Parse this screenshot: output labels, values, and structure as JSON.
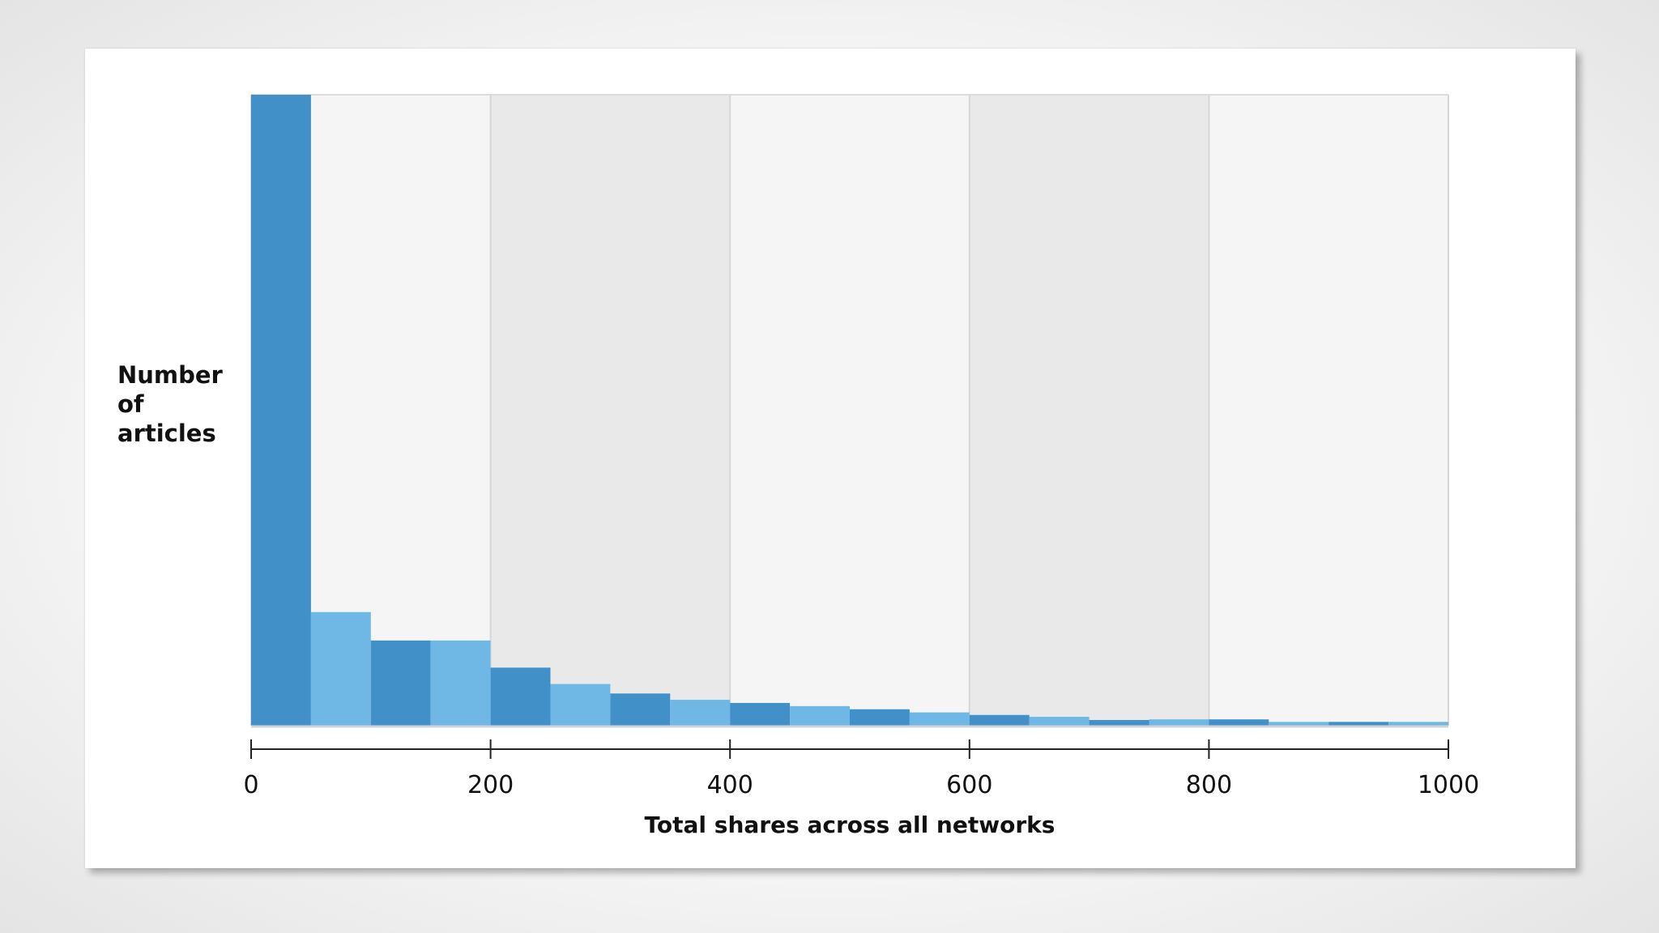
{
  "chart_data": {
    "type": "bar",
    "xlabel": "Total shares across all networks",
    "ylabel_lines": [
      "Number",
      "of",
      "articles"
    ],
    "xlim": [
      0,
      1000
    ],
    "x_ticks": [
      "0",
      "200",
      "400",
      "600",
      "800",
      "1000"
    ],
    "bin_width": 50,
    "bins": [
      {
        "start": 0,
        "end": 50,
        "value": 100
      },
      {
        "start": 50,
        "end": 100,
        "value": 18
      },
      {
        "start": 100,
        "end": 150,
        "value": 13.5
      },
      {
        "start": 150,
        "end": 200,
        "value": 13.5
      },
      {
        "start": 200,
        "end": 250,
        "value": 9.2
      },
      {
        "start": 250,
        "end": 300,
        "value": 6.6
      },
      {
        "start": 300,
        "end": 350,
        "value": 5.1
      },
      {
        "start": 350,
        "end": 400,
        "value": 4.1
      },
      {
        "start": 400,
        "end": 450,
        "value": 3.6
      },
      {
        "start": 450,
        "end": 500,
        "value": 3.1
      },
      {
        "start": 500,
        "end": 550,
        "value": 2.6
      },
      {
        "start": 550,
        "end": 600,
        "value": 2.1
      },
      {
        "start": 600,
        "end": 650,
        "value": 1.7
      },
      {
        "start": 650,
        "end": 700,
        "value": 1.4
      },
      {
        "start": 700,
        "end": 750,
        "value": 0.9
      },
      {
        "start": 750,
        "end": 800,
        "value": 1.0
      },
      {
        "start": 800,
        "end": 850,
        "value": 1.0
      },
      {
        "start": 850,
        "end": 900,
        "value": 0.6
      },
      {
        "start": 900,
        "end": 950,
        "value": 0.6
      },
      {
        "start": 950,
        "end": 1000,
        "value": 0.6
      }
    ],
    "ylim": [
      0,
      100
    ],
    "y_ticks_shown": false,
    "grid": "vertical bands at 200-unit intervals",
    "band_colors": [
      "#f5f5f6",
      "#e9e9ea"
    ],
    "bar_colors": [
      "#4290c8",
      "#6fb7e4"
    ]
  }
}
